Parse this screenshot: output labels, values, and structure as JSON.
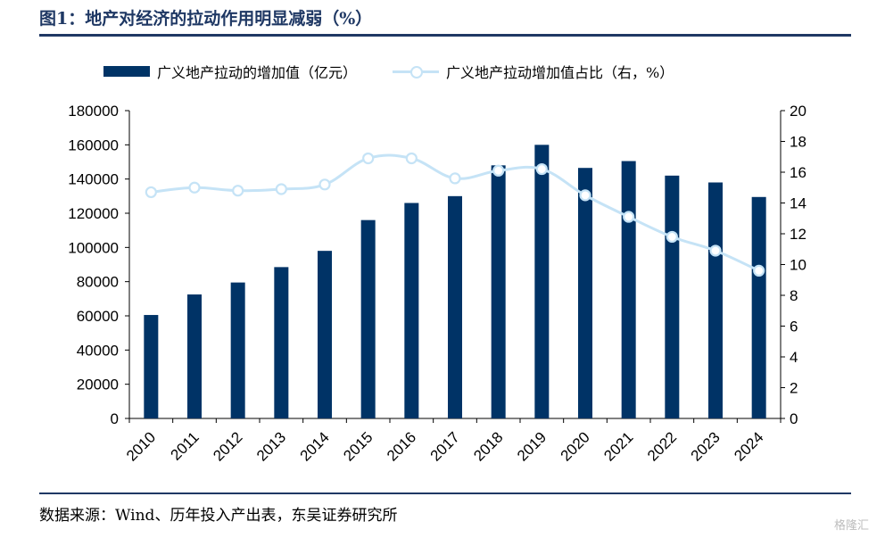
{
  "title": "图1：地产对经济的拉动作用明显减弱（%）",
  "source": "数据来源：Wind、历年投入产出表，东吴证券研究所",
  "watermark": "格隆汇",
  "legend": {
    "bar_label": "广义地产拉动的增加值（亿元）",
    "line_label": "广义地产拉动增加值占比（右，%）"
  },
  "chart_data": {
    "type": "bar",
    "categories": [
      "2010",
      "2011",
      "2012",
      "2013",
      "2014",
      "2015",
      "2016",
      "2017",
      "2018",
      "2019",
      "2020",
      "2021",
      "2022",
      "2023",
      "2024"
    ],
    "series": [
      {
        "name": "广义地产拉动的增加值（亿元）",
        "type": "bar",
        "axis": "left",
        "color": "#003366",
        "values": [
          60500,
          72500,
          79500,
          88500,
          98000,
          116000,
          126000,
          130000,
          148000,
          160000,
          146500,
          150500,
          142000,
          138000,
          129500
        ]
      },
      {
        "name": "广义地产拉动增加值占比（右，%）",
        "type": "line",
        "axis": "right",
        "color": "#c5e3f6",
        "values": [
          14.7,
          15.0,
          14.8,
          14.9,
          15.2,
          16.9,
          16.9,
          15.6,
          16.1,
          16.2,
          14.5,
          13.1,
          11.8,
          10.9,
          9.6
        ]
      }
    ],
    "ylim_left": [
      0,
      180000
    ],
    "ylim_right": [
      0,
      20
    ],
    "yticks_left": [
      0,
      20000,
      40000,
      60000,
      80000,
      100000,
      120000,
      140000,
      160000,
      180000
    ],
    "yticks_right": [
      0,
      2,
      4,
      6,
      8,
      10,
      12,
      14,
      16,
      18,
      20
    ],
    "grid": false,
    "legend_position": "top"
  }
}
